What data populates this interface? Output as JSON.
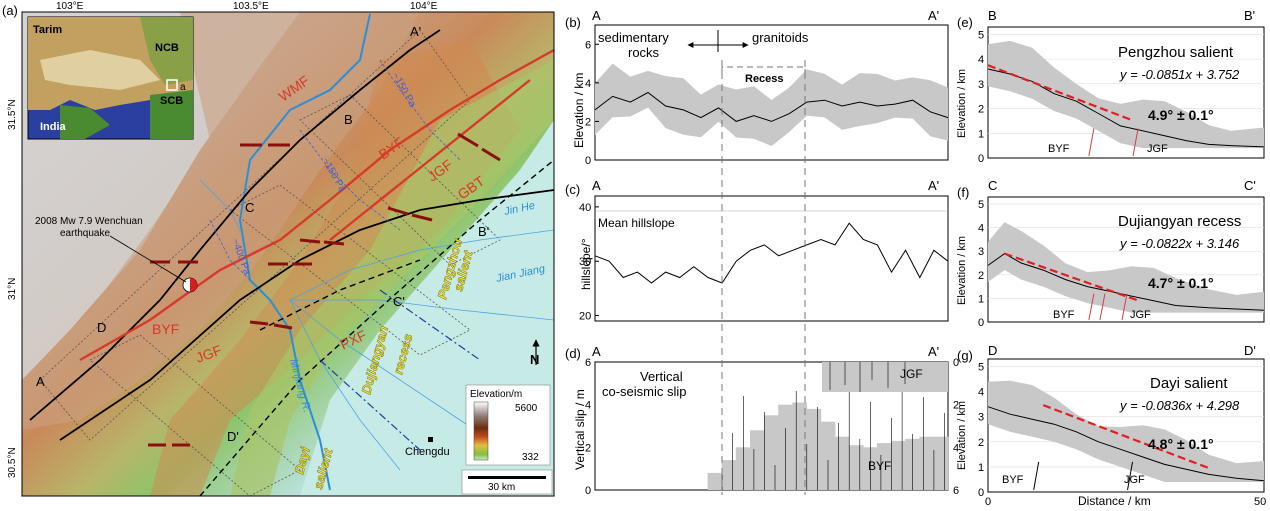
{
  "panel_a": {
    "label": "(a)",
    "lon_ticks": [
      "103°E",
      "103.5°E",
      "104°E"
    ],
    "lat_ticks": [
      "31.5°N",
      "31°N",
      "30.5°N"
    ],
    "inset": {
      "tarim": "Tarim",
      "ncb": "NCB",
      "scb": "SCB",
      "india": "India",
      "box": "a"
    },
    "faults": {
      "wmf": "WMF",
      "byf_n": "BYF",
      "jgf_n": "JGF",
      "gbt": "GBT",
      "byf_s": "BYF",
      "jgf_s": "JGF",
      "pxf": "PXF"
    },
    "rivers": {
      "jinhe": "Jin He",
      "jianjiang": "Jian Jiang",
      "minjiang": "Minjiang R."
    },
    "regions": {
      "pengzhou_1": "Pengzhou",
      "pengzhou_2": "salient",
      "dujiangyan_1": "Dujiangyan",
      "dujiangyan_2": "recess",
      "dayi_1": "Dayi",
      "dayi_2": "salient"
    },
    "profiles": {
      "a": "A",
      "ap": "A'",
      "b": "B",
      "bp": "B'",
      "c": "C",
      "cp": "C'",
      "d": "D",
      "dp": "D'"
    },
    "quake_line1": "2008 Mw 7.9 Wenchuan",
    "quake_line2": "earthquake",
    "contours": {
      "c1": "~150 Pa",
      "c2": "~150 Pa",
      "c3": "~400 Pa"
    },
    "city": "Chengdu",
    "north": "N",
    "elev_title": "Elevation/m",
    "elev_max": "5600",
    "elev_min": "332",
    "scale": "30 km"
  },
  "panel_b": {
    "label": "(b)",
    "left": "A",
    "right": "A'",
    "ylabel": "Elevation / km",
    "yticks": [
      "0",
      "2",
      "4",
      "6"
    ],
    "sed_1": "sedimentary",
    "sed_2": "rocks",
    "gran": "granitoids",
    "recess": "Recess"
  },
  "panel_c": {
    "label": "(c)",
    "left": "A",
    "right": "A'",
    "ylabel": "hillslope/°",
    "yticks": [
      "20",
      "30",
      "40"
    ],
    "note": "Mean hillslope"
  },
  "panel_d": {
    "label": "(d)",
    "left": "A",
    "right": "A'",
    "ylabel": "Vertical slip / m",
    "yticks_left": [
      "0",
      "2",
      "4",
      "6"
    ],
    "yticks_right": [
      "0",
      "2",
      "4",
      "6"
    ],
    "note_1": "Vertical",
    "note_2": "co-seismic slip",
    "jgf": "JGF",
    "byf": "BYF"
  },
  "panel_e": {
    "label": "(e)",
    "left": "B",
    "right": "B'",
    "title": "Pengzhou salient",
    "eq": "y = -0.0851x + 3.752",
    "angle": "4.9° ± 0.1°",
    "f1": "BYF",
    "f2": "JGF"
  },
  "panel_f": {
    "label": "(f)",
    "left": "C",
    "right": "C'",
    "title": "Dujiangyan recess",
    "eq": "y = -0.0822x + 3.146",
    "angle": "4.7° ± 0.1°",
    "f1": "BYF",
    "f2": "JGF"
  },
  "panel_g": {
    "label": "(g)",
    "left": "D",
    "right": "D'",
    "title": "Dayi salient",
    "eq": "y = -0.0836x + 4.298",
    "angle": "4.8° ± 0.1°",
    "f1": "BYF",
    "f2": "JGF"
  },
  "right_axes": {
    "ylabel": "Elevation / km",
    "yticks": [
      "0",
      "1",
      "2",
      "3",
      "4",
      "5"
    ],
    "xticks": [
      "0",
      "50"
    ],
    "xlabel": "Distance / km"
  },
  "chart_data": [
    {
      "type": "line",
      "panel": "b",
      "xlabel": "",
      "ylabel": "Elevation / km",
      "ylim": [
        0,
        7
      ],
      "series": [
        {
          "x": [
            0,
            0.05,
            0.1,
            0.15,
            0.2,
            0.25,
            0.3,
            0.35,
            0.4,
            0.45,
            0.5,
            0.55,
            0.6,
            0.65,
            0.7,
            0.75,
            0.8,
            0.85,
            0.9,
            0.95,
            1
          ],
          "y": [
            2.6,
            3.3,
            3.0,
            3.5,
            2.8,
            2.6,
            2.2,
            2.7,
            2.0,
            2.3,
            2.0,
            2.4,
            3.0,
            3.1,
            2.8,
            3.0,
            2.8,
            2.9,
            3.1,
            2.5,
            2.2
          ]
        }
      ]
    },
    {
      "type": "line",
      "panel": "c",
      "xlabel": "",
      "ylabel": "hillslope/°",
      "ylim": [
        20,
        40
      ],
      "series": [
        {
          "x": [
            0,
            0.04,
            0.08,
            0.12,
            0.16,
            0.2,
            0.24,
            0.28,
            0.32,
            0.36,
            0.4,
            0.44,
            0.48,
            0.52,
            0.56,
            0.6,
            0.64,
            0.68,
            0.72,
            0.76,
            0.8,
            0.84,
            0.88,
            0.92,
            0.96,
            1
          ],
          "y": [
            31,
            30,
            27,
            28,
            26,
            28,
            27,
            29,
            27,
            26,
            30,
            32,
            33,
            31,
            32,
            33,
            34,
            33,
            37,
            34,
            33,
            28,
            32,
            27,
            32,
            30
          ]
        }
      ]
    },
    {
      "type": "bar",
      "panel": "d",
      "ylabel": "Vertical slip / m",
      "ylim": [
        0,
        6
      ],
      "series": [
        {
          "name": "BYF",
          "x": [
            0.34,
            0.38,
            0.42,
            0.46,
            0.5,
            0.54,
            0.58,
            0.62,
            0.66,
            0.7,
            0.74,
            0.78,
            0.82,
            0.86,
            0.9,
            0.94,
            0.98
          ],
          "values": [
            0.8,
            1.4,
            2.0,
            2.8,
            3.5,
            4.0,
            4.1,
            3.8,
            3.2,
            2.5,
            2.1,
            2.0,
            2.2,
            2.3,
            2.4,
            2.5,
            2.5
          ]
        }
      ]
    },
    {
      "type": "line",
      "panel": "e",
      "xlabel": "Distance / km",
      "ylabel": "Elevation / km",
      "xlim": [
        0,
        50
      ],
      "ylim": [
        0,
        5.3
      ],
      "series": [
        {
          "x": [
            0,
            4,
            8,
            12,
            16,
            20,
            24,
            28,
            32,
            36,
            40,
            44,
            50
          ],
          "y": [
            3.6,
            3.4,
            3.1,
            2.6,
            2.3,
            1.8,
            1.3,
            1.1,
            0.9,
            0.7,
            0.55,
            0.5,
            0.45
          ]
        }
      ]
    },
    {
      "type": "line",
      "panel": "f",
      "xlabel": "Distance / km",
      "ylabel": "Elevation / km",
      "xlim": [
        0,
        50
      ],
      "ylim": [
        0,
        5.3
      ],
      "series": [
        {
          "x": [
            0,
            3,
            6,
            10,
            14,
            18,
            22,
            26,
            30,
            34,
            40,
            45,
            50
          ],
          "y": [
            2.4,
            2.9,
            2.5,
            2.2,
            1.8,
            1.5,
            1.3,
            1.1,
            0.9,
            0.7,
            0.6,
            0.55,
            0.5
          ]
        }
      ]
    },
    {
      "type": "line",
      "panel": "g",
      "xlabel": "Distance / km",
      "ylabel": "Elevation / km",
      "xlim": [
        0,
        50
      ],
      "ylim": [
        0,
        5.3
      ],
      "series": [
        {
          "x": [
            0,
            4,
            8,
            12,
            16,
            20,
            24,
            28,
            32,
            36,
            40,
            45,
            50
          ],
          "y": [
            3.4,
            3.1,
            2.9,
            2.7,
            2.4,
            2.0,
            1.7,
            1.4,
            1.1,
            0.9,
            0.7,
            0.55,
            0.45
          ]
        }
      ]
    }
  ]
}
